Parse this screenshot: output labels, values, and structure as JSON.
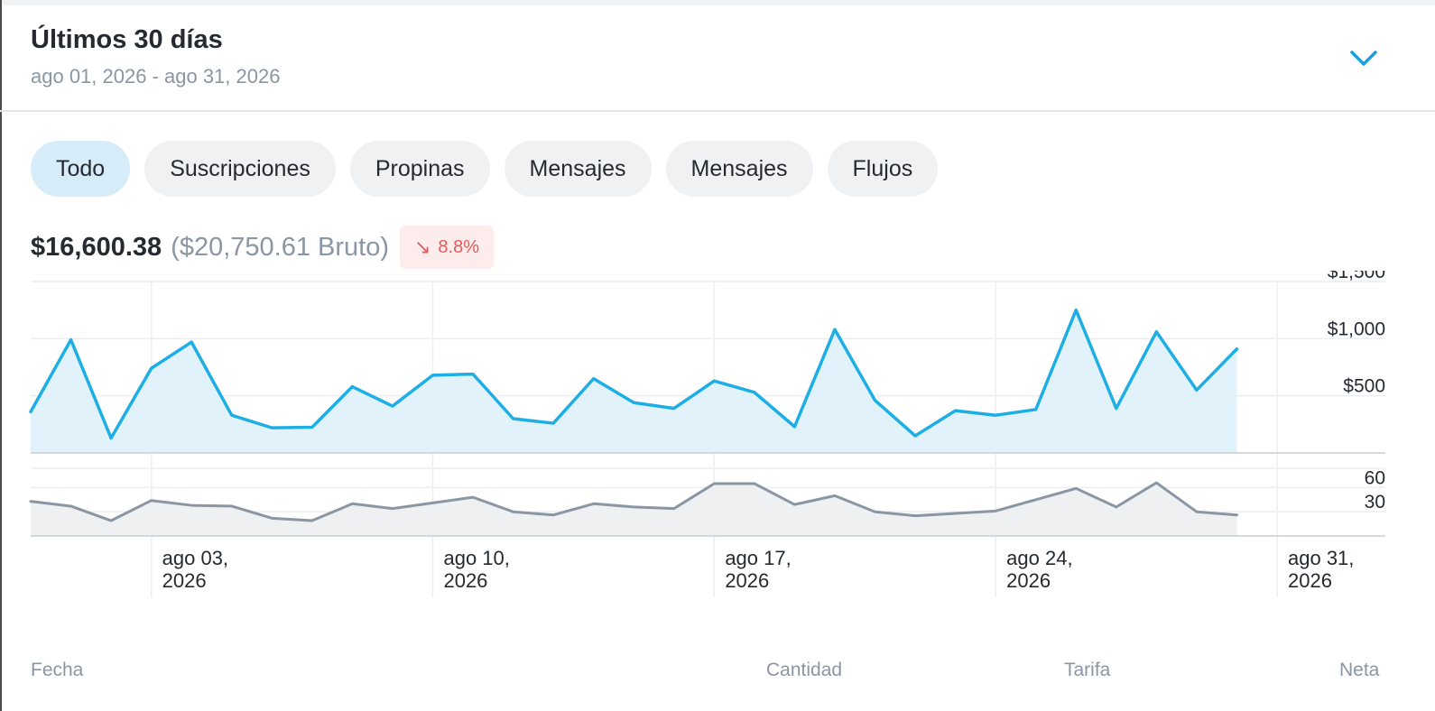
{
  "header": {
    "title": "Últimos 30 días",
    "date_range": "ago 01, 2026 - ago 31, 2026",
    "expand_icon": "chevron-down-icon"
  },
  "tabs": [
    {
      "label": "Todo",
      "active": true
    },
    {
      "label": "Suscripciones",
      "active": false
    },
    {
      "label": "Propinas",
      "active": false
    },
    {
      "label": "Mensajes",
      "active": false
    },
    {
      "label": "Mensajes",
      "active": false
    },
    {
      "label": "Flujos",
      "active": false
    }
  ],
  "summary": {
    "net": "$16,600.38",
    "gross": "($20,750.61 Bruto)",
    "change": "8.8%",
    "change_icon": "arrow-down-right-icon"
  },
  "colors": {
    "earnings_line": "#1eaee6",
    "earnings_fill": "#e1f2fb",
    "count_line": "#8a96a3",
    "count_fill": "#eef0f2",
    "badge_text": "#e8585a",
    "badge_bg": "#fdecec",
    "active_tab": "#d6ecf9"
  },
  "table_header": [
    "Fecha",
    "Cantidad",
    "Tarifa",
    "Neta"
  ],
  "chart_data": {
    "type": "area",
    "x_start": "2026-07-31",
    "x_end": "2026-08-31",
    "x_tick_labels": [
      [
        "ago 03,",
        "2026"
      ],
      [
        "ago 10,",
        "2026"
      ],
      [
        "ago 17,",
        "2026"
      ],
      [
        "ago 24,",
        "2026"
      ],
      [
        "ago 31,",
        "2026"
      ]
    ],
    "x_tick_dates": [
      "2026-08-03",
      "2026-08-10",
      "2026-08-17",
      "2026-08-24",
      "2026-08-31"
    ],
    "grid": true,
    "series": [
      {
        "panel": "top",
        "ylim": [
          0,
          1500
        ],
        "yticks": [
          500,
          1000,
          1500
        ],
        "ytick_labels": [
          "$500",
          "$1,000",
          "$1,500"
        ],
        "values": [
          360,
          990,
          130,
          740,
          970,
          330,
          220,
          225,
          580,
          410,
          680,
          690,
          300,
          260,
          650,
          440,
          390,
          630,
          530,
          230,
          1080,
          460,
          150,
          370,
          330,
          380,
          1250,
          390,
          1060,
          550,
          910
        ]
      },
      {
        "panel": "bottom",
        "ylim": [
          0,
          84
        ],
        "yticks": [
          30,
          60
        ],
        "ytick_labels": [
          "30",
          "60"
        ],
        "values": [
          43,
          37,
          19,
          44,
          38,
          37,
          22,
          19,
          40,
          34,
          41,
          48,
          30,
          26,
          40,
          36,
          34,
          65,
          65,
          39,
          50,
          30,
          25,
          28,
          31,
          45,
          59,
          36,
          66,
          30,
          26
        ]
      }
    ]
  }
}
